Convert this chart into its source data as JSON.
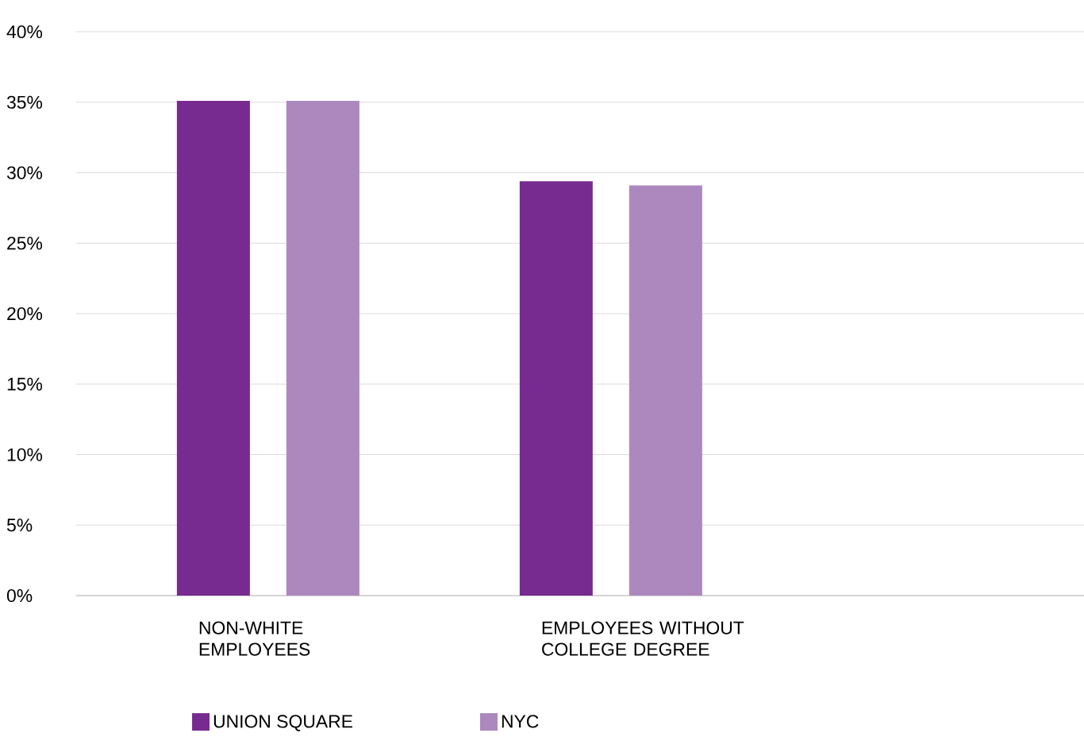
{
  "chart_data": {
    "type": "bar",
    "categories": [
      "NON-WHITE EMPLOYEES",
      "EMPLOYEES WITHOUT COLLEGE DEGREE"
    ],
    "series": [
      {
        "name": "UNION SQUARE",
        "color": "#772a8f",
        "values": [
          35.1,
          29.4
        ]
      },
      {
        "name": "NYC",
        "color": "#ac88bf",
        "values": [
          35.1,
          29.1
        ]
      }
    ],
    "ylim": [
      0,
      40
    ],
    "yticks": [
      {
        "value": 0,
        "label": "0%"
      },
      {
        "value": 5,
        "label": "5%"
      },
      {
        "value": 10,
        "label": "10%"
      },
      {
        "value": 15,
        "label": "15%"
      },
      {
        "value": 20,
        "label": "20%"
      },
      {
        "value": 25,
        "label": "25%"
      },
      {
        "value": 30,
        "label": "30%"
      },
      {
        "value": 35,
        "label": "35%"
      },
      {
        "value": 40,
        "label": "40%"
      }
    ],
    "grid": "y",
    "legend": "bottom"
  }
}
